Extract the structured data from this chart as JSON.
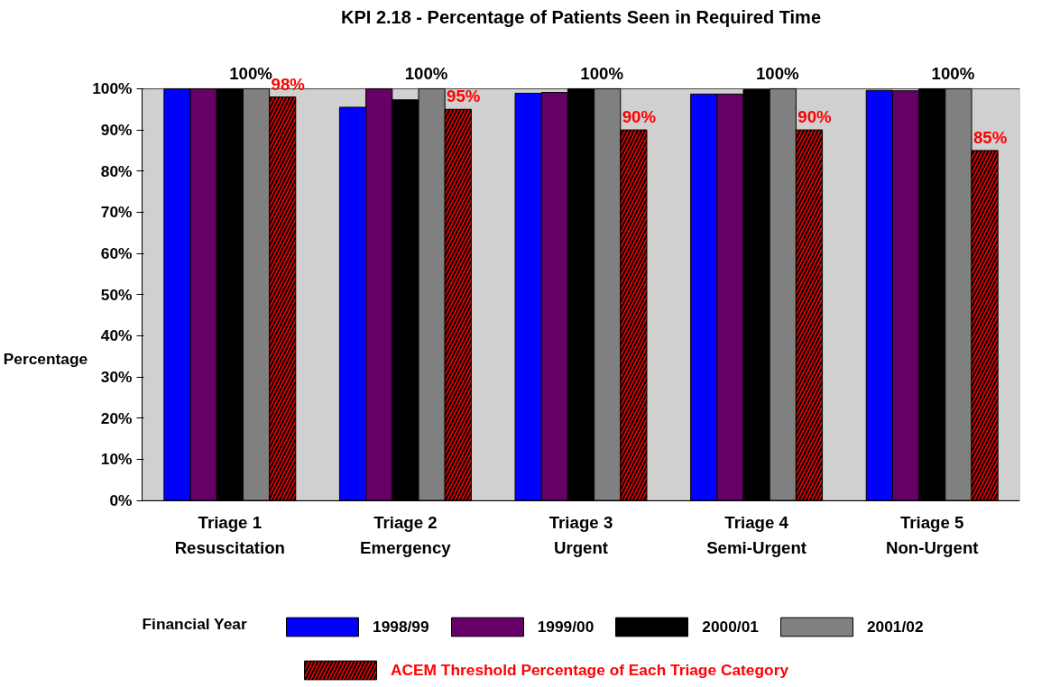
{
  "chart_data": {
    "type": "bar",
    "title": "KPI 2.18 - Percentage of Patients Seen in Required Time",
    "ylabel": "Percentage",
    "legend_title": "Financial Year",
    "categories": [
      "Triage 1\nResuscitation",
      "Triage 2\nEmergency",
      "Triage 3\nUrgent",
      "Triage 4\nSemi-Urgent",
      "Triage 5\nNon-Urgent"
    ],
    "series": [
      {
        "name": "1998/99",
        "color": "#0000ff",
        "values": [
          100,
          95.5,
          98.9,
          98.7,
          99.6
        ]
      },
      {
        "name": "1999/00",
        "color": "#660066",
        "values": [
          100,
          100,
          99.1,
          98.7,
          99.5
        ]
      },
      {
        "name": "2000/01",
        "color": "#000000",
        "values": [
          100,
          97.3,
          100,
          99.8,
          100
        ]
      },
      {
        "name": "2001/02",
        "color": "#808080",
        "values": [
          100,
          100,
          100,
          100,
          100
        ],
        "value_labels": [
          "100%",
          "100%",
          "100%",
          "100%",
          "100%"
        ]
      },
      {
        "name": "ACEM Threshold Percentage of Each Triage Category",
        "color": "#ff0000",
        "values": [
          98,
          95,
          90,
          90,
          85
        ],
        "value_labels": [
          "98%",
          "95%",
          "90%",
          "90%",
          "85%"
        ]
      }
    ],
    "ylim": [
      0,
      100
    ],
    "yticks": [
      {
        "value": 0,
        "label": "0%"
      },
      {
        "value": 10,
        "label": "10%"
      },
      {
        "value": 20,
        "label": "20%"
      },
      {
        "value": 30,
        "label": "30%"
      },
      {
        "value": 40,
        "label": "40%"
      },
      {
        "value": 50,
        "label": "50%"
      },
      {
        "value": 60,
        "label": "60%"
      },
      {
        "value": 70,
        "label": "70%"
      },
      {
        "value": 80,
        "label": "80%"
      },
      {
        "value": 90,
        "label": "90%"
      },
      {
        "value": 100,
        "label": "100%"
      }
    ],
    "grid": "y",
    "legend": "bottom"
  }
}
